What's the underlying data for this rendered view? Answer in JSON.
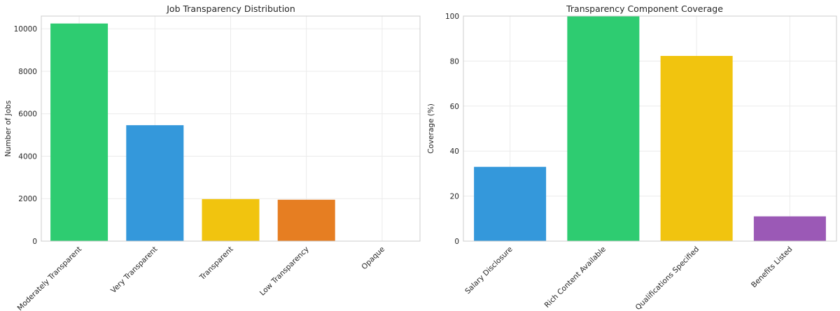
{
  "chart_data": [
    {
      "type": "bar",
      "title": "Job Transparency Distribution",
      "xlabel": "",
      "ylabel": "Number of Jobs",
      "ylim": [
        0,
        10600
      ],
      "yticks": [
        0,
        2000,
        4000,
        6000,
        8000,
        10000
      ],
      "grid": true,
      "categories": [
        "Moderately Transparent",
        "Very Transparent",
        "Transparent",
        "Low Transparency",
        "Opaque"
      ],
      "values": [
        10250,
        5460,
        1980,
        1950,
        0
      ],
      "colors": [
        "#2ecc71",
        "#3498db",
        "#f1c40f",
        "#e67e22",
        "#e74c3c"
      ]
    },
    {
      "type": "bar",
      "title": "Transparency Component Coverage",
      "xlabel": "",
      "ylabel": "Coverage (%)",
      "ylim": [
        0,
        100
      ],
      "yticks": [
        0,
        20,
        40,
        60,
        80,
        100
      ],
      "grid": true,
      "categories": [
        "Salary Disclosure",
        "Rich Content Available",
        "Qualifications Specified",
        "Benefits Listed"
      ],
      "values": [
        33,
        100,
        82.3,
        11
      ],
      "colors": [
        "#3498db",
        "#2ecc71",
        "#f1c40f",
        "#9b59b6"
      ]
    }
  ]
}
